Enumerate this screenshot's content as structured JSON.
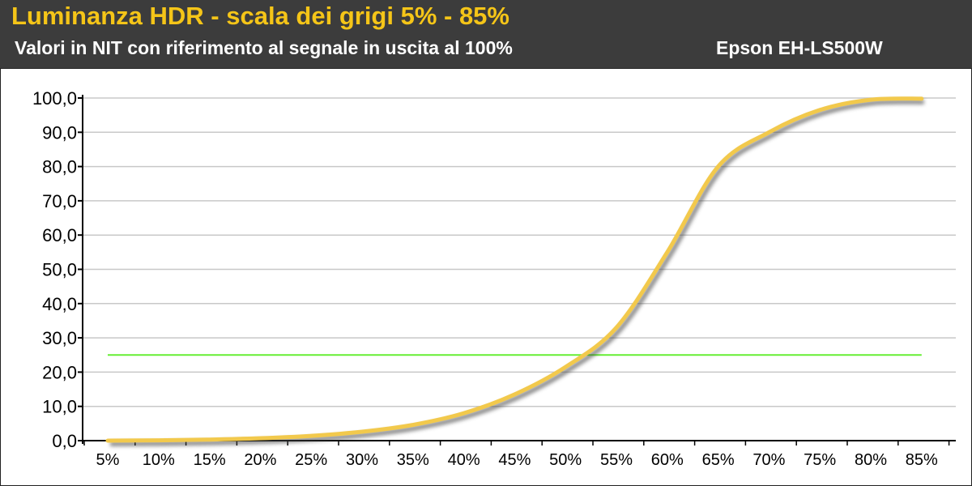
{
  "header": {
    "title": "Luminanza HDR - scala dei grigi 5% - 85%",
    "subtitle": "Valori in NIT con riferimento al segnale in uscita al 100%",
    "device": "Epson EH-LS500W"
  },
  "colors": {
    "header_bg": "#3c3c3c",
    "title": "#f5c518",
    "curve": "#f2c94c",
    "reference_line": "#66ee33",
    "grid": "#c8c8c8"
  },
  "chart_data": {
    "type": "line",
    "title": "Luminanza HDR - scala dei grigi 5% - 85%",
    "subtitle": "Valori in NIT con riferimento al segnale in uscita al 100%",
    "xlabel": "",
    "ylabel": "",
    "categories": [
      "5%",
      "10%",
      "15%",
      "20%",
      "25%",
      "30%",
      "35%",
      "40%",
      "45%",
      "50%",
      "55%",
      "60%",
      "65%",
      "70%",
      "75%",
      "80%",
      "85%"
    ],
    "y_ticks": [
      "0,0",
      "10,0",
      "20,0",
      "30,0",
      "40,0",
      "50,0",
      "60,0",
      "70,0",
      "80,0",
      "90,0",
      "100,0"
    ],
    "ylim": [
      0,
      100
    ],
    "grid": true,
    "legend": "none",
    "series": [
      {
        "values": [
          0,
          0.1,
          0.3,
          0.7,
          1.4,
          2.6,
          4.6,
          8.0,
          13.5,
          21.5,
          33.0,
          55.0,
          80.0,
          90.0,
          96.5,
          99.5,
          99.8
        ]
      },
      {
        "values": [
          25,
          25,
          25,
          25,
          25,
          25,
          25,
          25,
          25,
          25,
          25,
          25,
          25,
          25,
          25,
          25,
          25
        ]
      }
    ]
  }
}
